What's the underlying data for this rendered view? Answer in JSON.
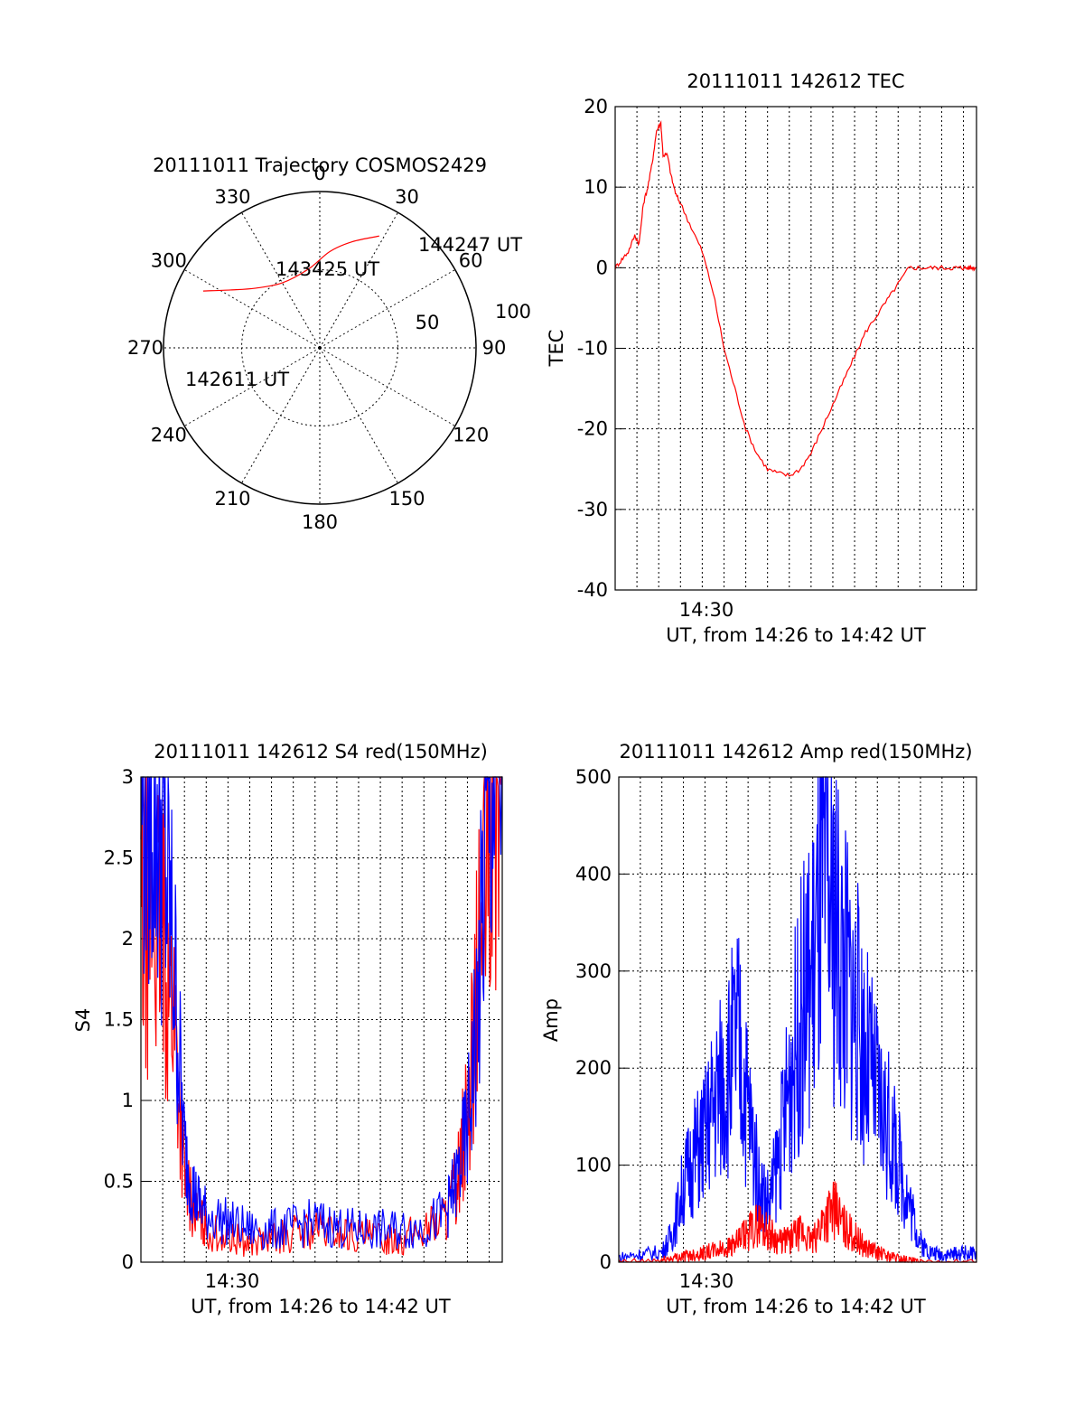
{
  "chart_data": [
    {
      "type": "polar",
      "title": "20111011 Trajectory COSMOS2429",
      "azimuth_labels": [
        "0",
        "30",
        "60",
        "90",
        "120",
        "150",
        "180",
        "210",
        "240",
        "270",
        "300",
        "330"
      ],
      "radial_labels": [
        "50",
        "100"
      ],
      "radial_values": [
        50,
        100
      ],
      "rmax": 100,
      "points": [
        {
          "az": 296,
          "r": 83,
          "label": "142611 UT"
        },
        {
          "az": 303,
          "r": 68
        },
        {
          "az": 313,
          "r": 56
        },
        {
          "az": 330,
          "r": 48
        },
        {
          "az": 352,
          "r": 51,
          "label": "143425 UT"
        },
        {
          "az": 6,
          "r": 62
        },
        {
          "az": 17,
          "r": 71
        },
        {
          "az": 28,
          "r": 81,
          "label": "144247 UT"
        }
      ],
      "colors": {
        "track": "#ff0000"
      }
    },
    {
      "type": "line",
      "title": "20111011 142612 TEC",
      "ylabel": "TEC",
      "xlabel": "UT, from 14:26 to 14:42 UT",
      "x_tick_labels": [
        "14:30"
      ],
      "ylim": [
        -40,
        20
      ],
      "yticks": [
        -40,
        -30,
        -20,
        -10,
        0,
        10,
        20
      ],
      "xrange_minutes": [
        0,
        16.6
      ],
      "x_tick_minutes": [
        3.0
      ],
      "series": [
        {
          "color": "#ff0000",
          "x": [
            0.0,
            0.3,
            0.6,
            0.9,
            1.1,
            1.3,
            1.5,
            1.7,
            1.9,
            2.1,
            2.2,
            2.4,
            2.6,
            2.8,
            3.0,
            3.5,
            4.0,
            4.5,
            5.0,
            5.5,
            6.0,
            6.5,
            7.0,
            7.5,
            8.0,
            8.5,
            9.0,
            9.5,
            10.0,
            10.5,
            11.0,
            11.5,
            12.0,
            12.5,
            13.0,
            13.5,
            14.0,
            14.5,
            15.0,
            15.5,
            15.8,
            16.0,
            16.2,
            16.4,
            16.6
          ],
          "y": [
            0,
            1,
            2,
            4,
            3,
            8,
            10,
            13,
            17,
            18,
            14,
            14,
            11,
            9,
            8,
            5,
            2,
            -3,
            -10,
            -15,
            -20,
            -23,
            -25,
            -25.5,
            -25.8,
            -25,
            -23,
            -20,
            -17,
            -14,
            -11,
            -8,
            -6,
            -4,
            -2,
            0,
            0,
            0,
            0,
            0,
            0,
            0,
            0,
            0,
            0
          ]
        }
      ]
    },
    {
      "type": "line",
      "title": "20111011 142612 S4 red(150MHz)",
      "ylabel": "S4",
      "xlabel": "UT, from 14:26 to 14:42 UT",
      "x_tick_labels": [
        "14:30"
      ],
      "ylim": [
        0,
        3
      ],
      "yticks": [
        0,
        0.5,
        1,
        1.5,
        2,
        2.5,
        3
      ],
      "ytick_labels": [
        "0",
        "0.5",
        "1",
        "1.5",
        "2",
        "2.5",
        "3"
      ],
      "xrange_minutes": [
        0,
        16.6
      ],
      "x_tick_minutes": [
        3.0
      ],
      "series": [
        {
          "color": "#0000ff",
          "x": [
            0.0,
            0.5,
            1.0,
            1.5,
            2.0,
            2.5,
            3.0,
            4.0,
            5.0,
            6.0,
            7.0,
            8.0,
            9.0,
            10.0,
            11.0,
            12.0,
            13.0,
            14.0,
            14.5,
            15.0,
            15.5,
            16.0,
            16.6
          ],
          "y": [
            3.0,
            3.0,
            2.6,
            1.9,
            0.7,
            0.4,
            0.3,
            0.25,
            0.2,
            0.2,
            0.22,
            0.25,
            0.22,
            0.2,
            0.2,
            0.2,
            0.22,
            0.3,
            0.5,
            0.8,
            1.6,
            3.0,
            3.0
          ]
        },
        {
          "color": "#ff0000",
          "x": [
            0.0,
            0.5,
            1.0,
            1.5,
            2.0,
            2.5,
            3.0,
            4.0,
            5.0,
            6.0,
            7.0,
            8.0,
            9.0,
            10.0,
            11.0,
            12.0,
            13.0,
            14.0,
            14.5,
            15.0,
            15.5,
            16.0,
            16.6
          ],
          "y": [
            2.0,
            2.2,
            2.0,
            1.6,
            0.5,
            0.3,
            0.2,
            0.15,
            0.12,
            0.14,
            0.18,
            0.2,
            0.18,
            0.16,
            0.15,
            0.15,
            0.2,
            0.28,
            0.5,
            0.9,
            1.8,
            2.6,
            3.0
          ]
        }
      ]
    },
    {
      "type": "line",
      "title": "20111011 142612 Amp red(150MHz)",
      "ylabel": "Amp",
      "xlabel": "UT, from 14:26 to 14:42 UT",
      "x_tick_labels": [
        "14:30"
      ],
      "ylim": [
        0,
        500
      ],
      "yticks": [
        0,
        100,
        200,
        300,
        400,
        500
      ],
      "xrange_minutes": [
        0,
        16.6
      ],
      "x_tick_minutes": [
        3.0
      ],
      "series": [
        {
          "color": "#0000ff",
          "x": [
            0.0,
            1.0,
            2.0,
            2.5,
            3.0,
            3.5,
            4.0,
            4.5,
            5.0,
            5.5,
            6.0,
            6.5,
            7.0,
            7.5,
            8.0,
            8.5,
            9.0,
            9.5,
            10.0,
            10.5,
            11.0,
            11.5,
            12.0,
            12.5,
            13.0,
            13.5,
            14.0,
            14.5,
            15.0,
            15.5,
            16.0,
            16.6
          ],
          "y": [
            5,
            8,
            10,
            30,
            80,
            110,
            130,
            170,
            190,
            230,
            160,
            80,
            60,
            120,
            200,
            260,
            300,
            380,
            350,
            300,
            260,
            210,
            170,
            140,
            100,
            60,
            20,
            10,
            8,
            8,
            10,
            8
          ]
        },
        {
          "color": "#ff0000",
          "x": [
            0.0,
            2.0,
            2.5,
            3.0,
            3.5,
            4.0,
            4.5,
            5.0,
            5.5,
            6.0,
            6.5,
            7.0,
            7.5,
            8.0,
            8.5,
            9.0,
            9.5,
            10.0,
            10.5,
            11.0,
            11.5,
            12.0,
            12.5,
            13.0,
            13.5,
            14.0,
            16.6
          ],
          "y": [
            0,
            2,
            4,
            6,
            8,
            10,
            12,
            15,
            20,
            30,
            40,
            30,
            20,
            25,
            30,
            20,
            45,
            55,
            35,
            25,
            15,
            10,
            6,
            4,
            2,
            0,
            0
          ]
        }
      ]
    }
  ]
}
